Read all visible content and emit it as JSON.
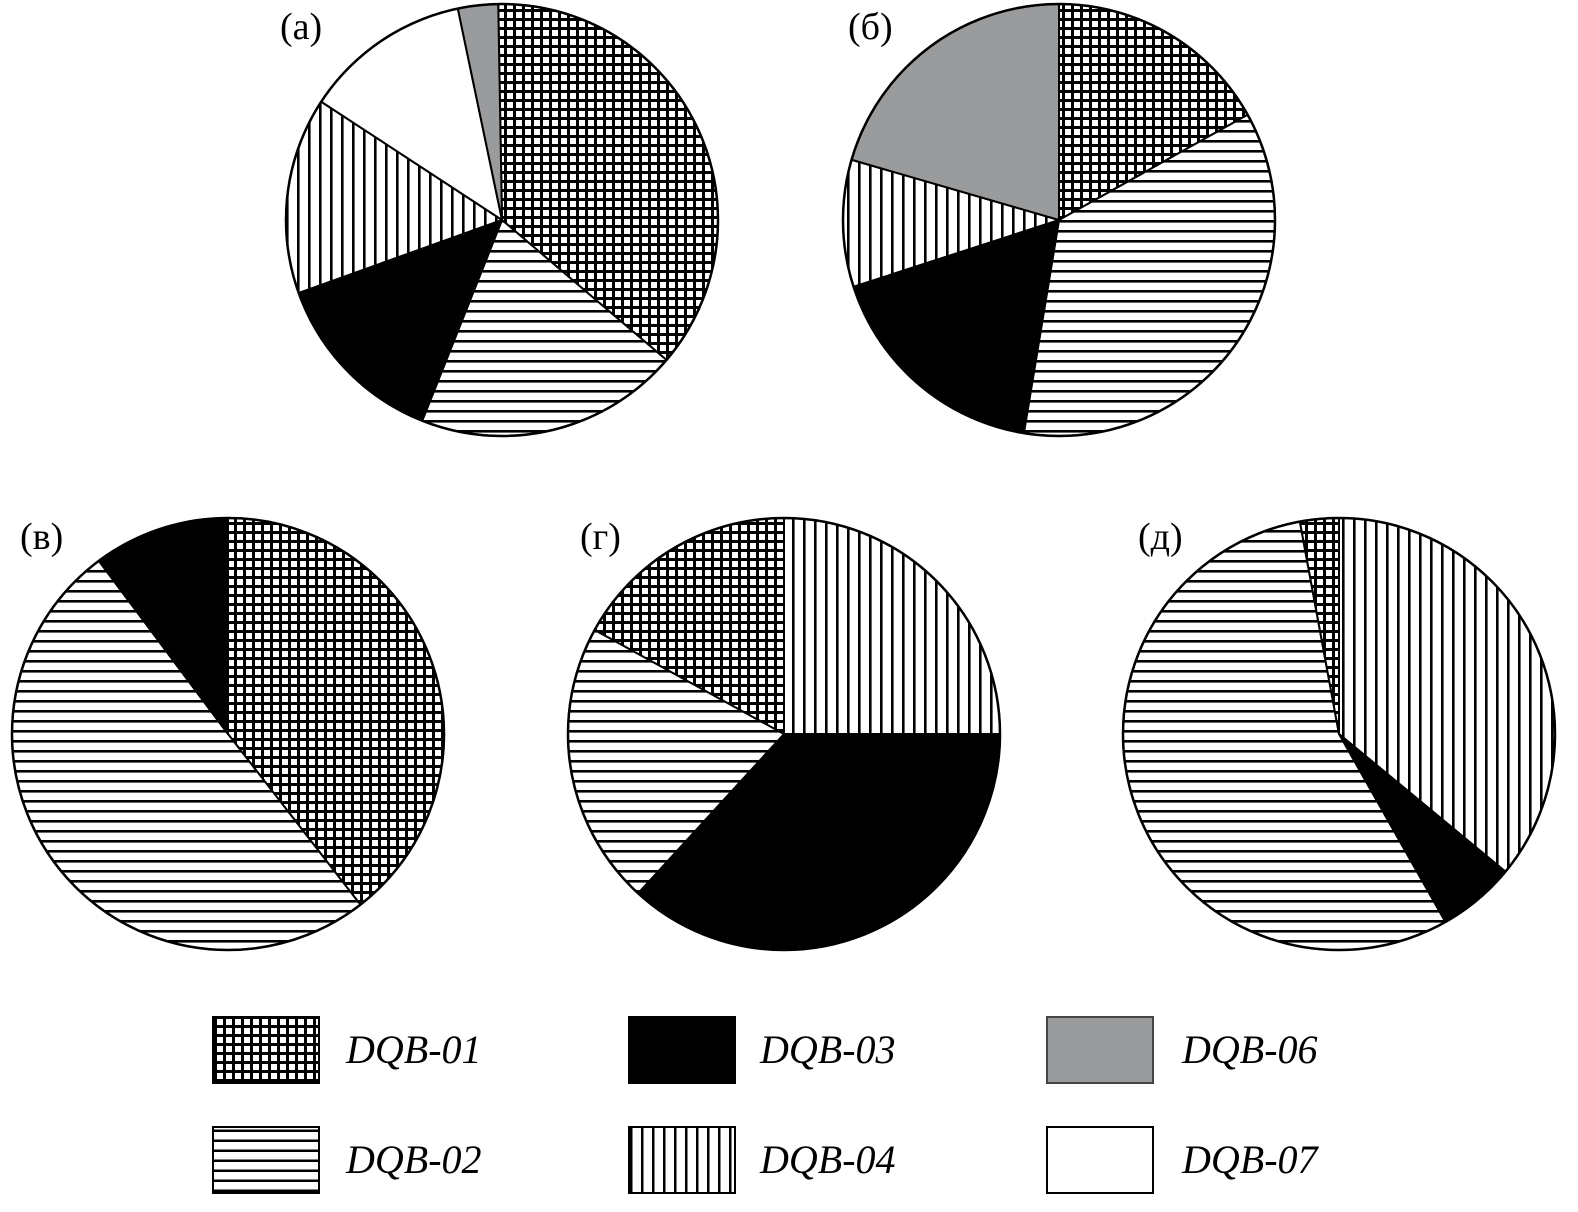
{
  "chart_data": {
    "type": "pie",
    "legend": [
      {
        "key": "DQB-01",
        "label": "DQB-01",
        "pattern": "crosshatch",
        "color": "#000000"
      },
      {
        "key": "DQB-02",
        "label": "DQB-02",
        "pattern": "horizontal",
        "color": "#000000"
      },
      {
        "key": "DQB-03",
        "label": "DQB-03",
        "pattern": "solid",
        "color": "#000000"
      },
      {
        "key": "DQB-04",
        "label": "DQB-04",
        "pattern": "vertical",
        "color": "#000000"
      },
      {
        "key": "DQB-06",
        "label": "DQB-06",
        "pattern": "solid",
        "color": "#9a9b9d"
      },
      {
        "key": "DQB-07",
        "label": "DQB-07",
        "pattern": "solid",
        "color": "#ffffff"
      }
    ],
    "charts": [
      {
        "label": "(а)",
        "start_angle": -1,
        "slices": [
          {
            "key": "DQB-01",
            "value": 36.5
          },
          {
            "key": "DQB-02",
            "value": 19.8
          },
          {
            "key": "DQB-03",
            "value": 13.5
          },
          {
            "key": "DQB-04",
            "value": 14.7
          },
          {
            "key": "DQB-07",
            "value": 12.5
          },
          {
            "key": "DQB-06",
            "value": 3.0
          }
        ]
      },
      {
        "label": "(б)",
        "start_angle": 0,
        "slices": [
          {
            "key": "DQB-01",
            "value": 16.9
          },
          {
            "key": "DQB-02",
            "value": 35.7
          },
          {
            "key": "DQB-03",
            "value": 17.4
          },
          {
            "key": "DQB-04",
            "value": 9.5
          },
          {
            "key": "DQB-06",
            "value": 20.5
          }
        ]
      },
      {
        "label": "(в)",
        "start_angle": 0,
        "slices": [
          {
            "key": "DQB-01",
            "value": 39.5
          },
          {
            "key": "DQB-02",
            "value": 50.3
          },
          {
            "key": "DQB-03",
            "value": 10.2
          }
        ]
      },
      {
        "label": "(г)",
        "start_angle": 0,
        "slices": [
          {
            "key": "DQB-04",
            "value": 25.0
          },
          {
            "key": "DQB-03",
            "value": 36.8
          },
          {
            "key": "DQB-02",
            "value": 21.2
          },
          {
            "key": "DQB-01",
            "value": 17.0
          }
        ]
      },
      {
        "label": "(д)",
        "start_angle": 0,
        "slices": [
          {
            "key": "DQB-04",
            "value": 36.0
          },
          {
            "key": "DQB-03",
            "value": 5.8
          },
          {
            "key": "DQB-02",
            "value": 55.3
          },
          {
            "key": "DQB-01",
            "value": 2.9
          }
        ]
      }
    ]
  }
}
